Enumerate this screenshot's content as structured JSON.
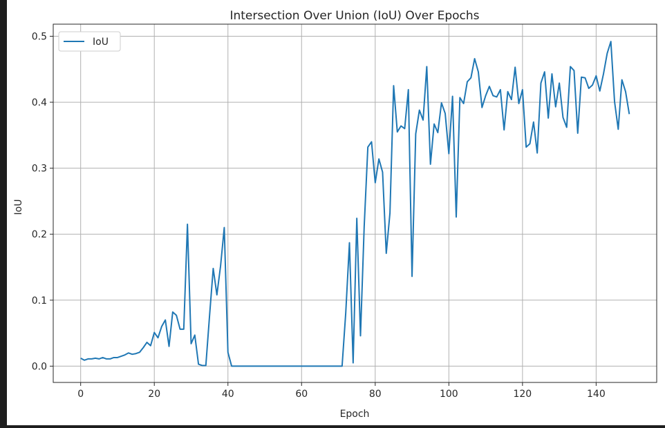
{
  "chart_data": {
    "type": "line",
    "title": "Intersection Over Union (IoU) Over Epochs",
    "xlabel": "Epoch",
    "ylabel": "IoU",
    "xlim": [
      -7.45,
      156.45
    ],
    "ylim": [
      -0.0247,
      0.5183
    ],
    "xticks": [
      0,
      20,
      40,
      60,
      80,
      100,
      120,
      140
    ],
    "yticks": [
      0.0,
      0.1,
      0.2,
      0.3,
      0.4,
      0.5
    ],
    "grid": true,
    "legend": "top-left",
    "colors": {
      "line": "#1f77b4",
      "grid": "#b0b0b0"
    },
    "series": [
      {
        "name": "IoU",
        "x": [
          0,
          1,
          2,
          3,
          4,
          5,
          6,
          7,
          8,
          9,
          10,
          11,
          12,
          13,
          14,
          15,
          16,
          17,
          18,
          19,
          20,
          21,
          22,
          23,
          24,
          25,
          26,
          27,
          28,
          29,
          30,
          31,
          32,
          33,
          34,
          35,
          36,
          37,
          38,
          39,
          40,
          41,
          42,
          43,
          44,
          45,
          46,
          47,
          48,
          49,
          50,
          51,
          52,
          53,
          54,
          55,
          56,
          57,
          58,
          59,
          60,
          61,
          62,
          63,
          64,
          65,
          66,
          67,
          68,
          69,
          70,
          71,
          72,
          73,
          74,
          75,
          76,
          77,
          78,
          79,
          80,
          81,
          82,
          83,
          84,
          85,
          86,
          87,
          88,
          89,
          90,
          91,
          92,
          93,
          94,
          95,
          96,
          97,
          98,
          99,
          100,
          101,
          102,
          103,
          104,
          105,
          106,
          107,
          108,
          109,
          110,
          111,
          112,
          113,
          114,
          115,
          116,
          117,
          118,
          119,
          120,
          121,
          122,
          123,
          124,
          125,
          126,
          127,
          128,
          129,
          130,
          131,
          132,
          133,
          134,
          135,
          136,
          137,
          138,
          139,
          140,
          141,
          142,
          143,
          144,
          145,
          146,
          147,
          148,
          149
        ],
        "values": [
          0.012,
          0.009,
          0.011,
          0.011,
          0.012,
          0.011,
          0.013,
          0.011,
          0.011,
          0.013,
          0.013,
          0.015,
          0.017,
          0.02,
          0.018,
          0.019,
          0.021,
          0.028,
          0.036,
          0.031,
          0.051,
          0.043,
          0.06,
          0.07,
          0.03,
          0.082,
          0.077,
          0.056,
          0.056,
          0.215,
          0.034,
          0.047,
          0.003,
          0.001,
          0.001,
          0.076,
          0.148,
          0.108,
          0.152,
          0.21,
          0.021,
          0.0,
          0.0,
          0.0,
          0.0,
          0.0,
          0.0,
          0.0,
          0.0,
          0.0,
          0.0,
          0.0,
          0.0,
          0.0,
          0.0,
          0.0,
          0.0,
          0.0,
          0.0,
          0.0,
          0.0,
          0.0,
          0.0,
          0.0,
          0.0,
          0.0,
          0.0,
          0.0,
          0.0,
          0.0,
          0.0,
          0.0,
          0.081,
          0.187,
          0.005,
          0.224,
          0.046,
          0.211,
          0.332,
          0.34,
          0.278,
          0.314,
          0.294,
          0.171,
          0.232,
          0.425,
          0.355,
          0.364,
          0.36,
          0.419,
          0.136,
          0.352,
          0.388,
          0.373,
          0.454,
          0.306,
          0.367,
          0.354,
          0.399,
          0.383,
          0.322,
          0.409,
          0.226,
          0.407,
          0.398,
          0.431,
          0.437,
          0.466,
          0.446,
          0.392,
          0.41,
          0.424,
          0.41,
          0.408,
          0.419,
          0.358,
          0.416,
          0.404,
          0.453,
          0.398,
          0.419,
          0.332,
          0.337,
          0.37,
          0.323,
          0.429,
          0.446,
          0.376,
          0.443,
          0.393,
          0.429,
          0.377,
          0.362,
          0.454,
          0.448,
          0.353,
          0.438,
          0.437,
          0.421,
          0.426,
          0.44,
          0.417,
          0.443,
          0.474,
          0.492,
          0.401,
          0.359,
          0.434,
          0.416,
          0.382
        ]
      }
    ]
  }
}
